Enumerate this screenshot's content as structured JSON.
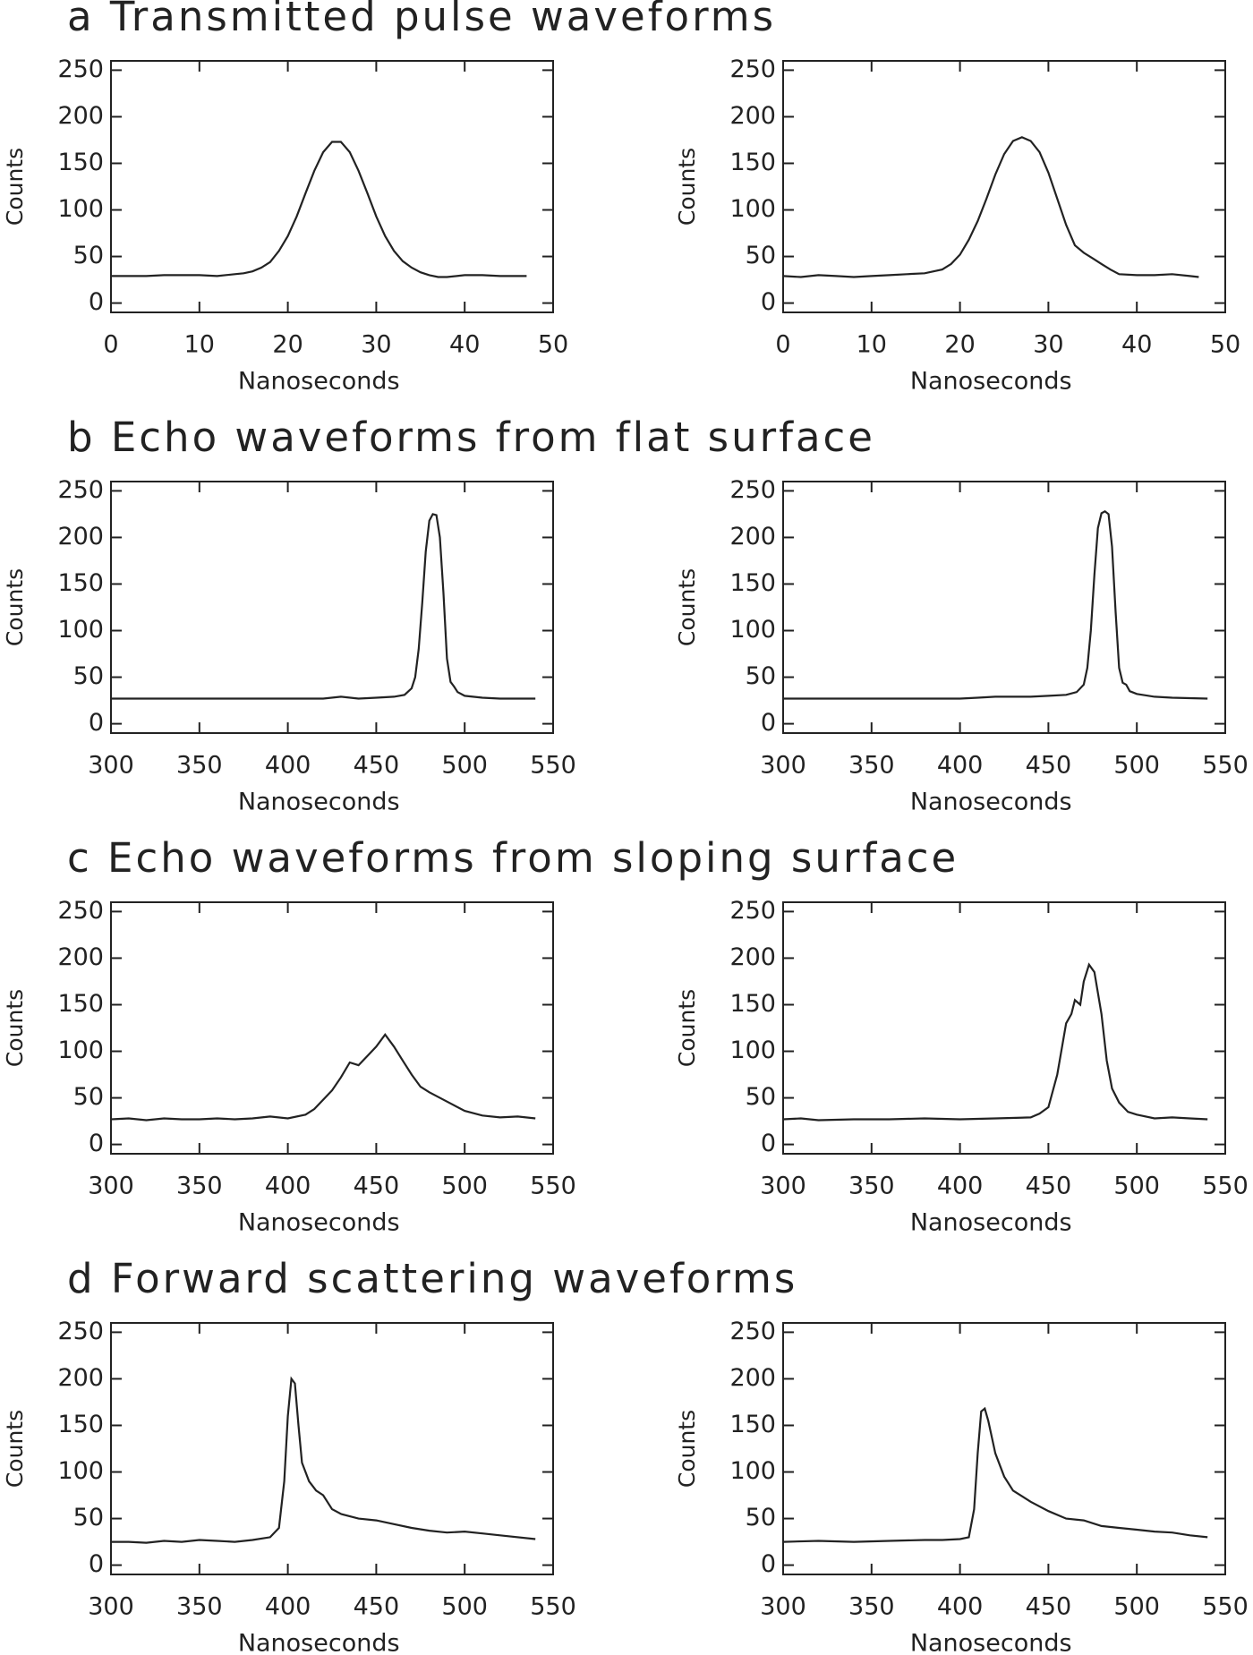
{
  "chart_data": [
    {
      "type": "line",
      "title": "a Transmitted pulse waveforms",
      "xlabel": "Nanoseconds",
      "ylabel": "Counts",
      "x": [
        0,
        2,
        4,
        6,
        8,
        10,
        12,
        14,
        15,
        16,
        17,
        18,
        19,
        20,
        21,
        22,
        23,
        24,
        25,
        26,
        27,
        28,
        29,
        30,
        31,
        32,
        33,
        34,
        35,
        36,
        37,
        38,
        40,
        42,
        44,
        46,
        47
      ],
      "values": [
        29,
        29,
        29,
        30,
        30,
        30,
        29,
        31,
        32,
        34,
        38,
        44,
        56,
        72,
        93,
        118,
        142,
        162,
        173,
        173,
        162,
        142,
        118,
        93,
        72,
        56,
        45,
        38,
        33,
        30,
        28,
        28,
        30,
        30,
        29,
        29,
        29
      ],
      "color": "#222",
      "xlim": [
        0,
        50
      ],
      "xticks": [
        0,
        10,
        20,
        30,
        40,
        50
      ],
      "ylim": [
        -10,
        260
      ],
      "yticks": [
        0,
        50,
        100,
        150,
        200,
        250
      ]
    },
    {
      "type": "line",
      "xlabel": "Nanoseconds",
      "ylabel": "Counts",
      "x": [
        0,
        2,
        4,
        6,
        8,
        10,
        12,
        14,
        16,
        17,
        18,
        19,
        20,
        21,
        22,
        23,
        24,
        25,
        26,
        27,
        28,
        29,
        30,
        31,
        32,
        33,
        34,
        35,
        36,
        37,
        38,
        40,
        42,
        44,
        46,
        47
      ],
      "values": [
        29,
        28,
        30,
        29,
        28,
        29,
        30,
        31,
        32,
        34,
        36,
        42,
        52,
        68,
        88,
        112,
        138,
        160,
        174,
        178,
        174,
        162,
        140,
        112,
        84,
        62,
        54,
        48,
        42,
        36,
        31,
        30,
        30,
        31,
        29,
        28
      ],
      "color": "#222",
      "xlim": [
        0,
        50
      ],
      "xticks": [
        0,
        10,
        20,
        30,
        40,
        50
      ],
      "ylim": [
        -10,
        260
      ],
      "yticks": [
        0,
        50,
        100,
        150,
        200,
        250
      ]
    },
    {
      "type": "line",
      "title": "b Echo waveforms from flat surface",
      "xlabel": "Nanoseconds",
      "ylabel": "Counts",
      "x": [
        300,
        320,
        340,
        360,
        380,
        400,
        420,
        430,
        440,
        450,
        460,
        466,
        470,
        472,
        474,
        476,
        478,
        480,
        482,
        484,
        486,
        488,
        490,
        492,
        494,
        496,
        500,
        510,
        520,
        540
      ],
      "values": [
        27,
        27,
        27,
        27,
        27,
        27,
        27,
        29,
        27,
        28,
        29,
        31,
        38,
        50,
        80,
        130,
        185,
        218,
        225,
        224,
        200,
        140,
        70,
        45,
        40,
        34,
        30,
        28,
        27,
        27
      ],
      "color": "#222",
      "xlim": [
        300,
        550
      ],
      "xticks": [
        300,
        350,
        400,
        450,
        500,
        550
      ],
      "ylim": [
        -10,
        260
      ],
      "yticks": [
        0,
        50,
        100,
        150,
        200,
        250
      ]
    },
    {
      "type": "line",
      "xlabel": "Nanoseconds",
      "ylabel": "Counts",
      "x": [
        300,
        320,
        340,
        360,
        380,
        400,
        410,
        420,
        440,
        450,
        460,
        466,
        470,
        472,
        474,
        476,
        478,
        480,
        482,
        484,
        486,
        488,
        490,
        492,
        494,
        496,
        500,
        510,
        520,
        540
      ],
      "values": [
        27,
        27,
        27,
        27,
        27,
        27,
        28,
        29,
        29,
        30,
        31,
        34,
        42,
        60,
        100,
        160,
        210,
        226,
        228,
        225,
        190,
        120,
        60,
        44,
        42,
        35,
        32,
        29,
        28,
        27
      ],
      "color": "#222",
      "xlim": [
        300,
        550
      ],
      "xticks": [
        300,
        350,
        400,
        450,
        500,
        550
      ],
      "ylim": [
        -10,
        260
      ],
      "yticks": [
        0,
        50,
        100,
        150,
        200,
        250
      ]
    },
    {
      "type": "line",
      "title": "c Echo waveforms from sloping surface",
      "xlabel": "Nanoseconds",
      "ylabel": "Counts",
      "x": [
        300,
        310,
        320,
        330,
        340,
        350,
        360,
        370,
        380,
        390,
        400,
        410,
        415,
        420,
        425,
        430,
        435,
        440,
        445,
        450,
        455,
        460,
        465,
        470,
        475,
        480,
        490,
        500,
        510,
        520,
        530,
        540
      ],
      "values": [
        27,
        28,
        26,
        28,
        27,
        27,
        28,
        27,
        28,
        30,
        28,
        32,
        38,
        48,
        58,
        72,
        88,
        85,
        95,
        105,
        118,
        105,
        90,
        75,
        62,
        56,
        46,
        36,
        31,
        29,
        30,
        28
      ],
      "color": "#222",
      "xlim": [
        300,
        550
      ],
      "xticks": [
        300,
        350,
        400,
        450,
        500,
        550
      ],
      "ylim": [
        -10,
        260
      ],
      "yticks": [
        0,
        50,
        100,
        150,
        200,
        250
      ]
    },
    {
      "type": "line",
      "xlabel": "Nanoseconds",
      "ylabel": "Counts",
      "x": [
        300,
        310,
        320,
        340,
        360,
        380,
        400,
        420,
        440,
        445,
        450,
        455,
        460,
        463,
        465,
        468,
        470,
        473,
        476,
        480,
        483,
        486,
        490,
        495,
        500,
        510,
        520,
        530,
        540
      ],
      "values": [
        27,
        28,
        26,
        27,
        27,
        28,
        27,
        28,
        29,
        33,
        40,
        75,
        130,
        140,
        155,
        150,
        175,
        193,
        185,
        140,
        90,
        60,
        45,
        35,
        32,
        28,
        29,
        28,
        27
      ],
      "color": "#222",
      "xlim": [
        300,
        550
      ],
      "xticks": [
        300,
        350,
        400,
        450,
        500,
        550
      ],
      "ylim": [
        -10,
        260
      ],
      "yticks": [
        0,
        50,
        100,
        150,
        200,
        250
      ]
    },
    {
      "type": "line",
      "title": "d Forward scattering waveforms",
      "xlabel": "Nanoseconds",
      "ylabel": "Counts",
      "x": [
        300,
        310,
        320,
        330,
        340,
        350,
        360,
        370,
        380,
        390,
        395,
        398,
        400,
        402,
        404,
        406,
        408,
        412,
        416,
        420,
        425,
        430,
        440,
        450,
        460,
        470,
        480,
        490,
        500,
        510,
        520,
        540
      ],
      "values": [
        25,
        25,
        24,
        26,
        25,
        27,
        26,
        25,
        27,
        30,
        40,
        90,
        160,
        200,
        195,
        150,
        110,
        90,
        80,
        75,
        60,
        55,
        50,
        48,
        44,
        40,
        37,
        35,
        36,
        34,
        32,
        28
      ],
      "color": "#222",
      "xlim": [
        300,
        550
      ],
      "xticks": [
        300,
        350,
        400,
        450,
        500,
        550
      ],
      "ylim": [
        -10,
        260
      ],
      "yticks": [
        0,
        50,
        100,
        150,
        200,
        250
      ]
    },
    {
      "type": "line",
      "xlabel": "Nanoseconds",
      "ylabel": "Counts",
      "x": [
        300,
        320,
        340,
        360,
        380,
        390,
        400,
        405,
        408,
        410,
        412,
        414,
        416,
        420,
        425,
        430,
        440,
        450,
        460,
        470,
        480,
        490,
        500,
        510,
        520,
        530,
        540
      ],
      "values": [
        25,
        26,
        25,
        26,
        27,
        27,
        28,
        30,
        60,
        120,
        165,
        168,
        155,
        120,
        95,
        80,
        68,
        58,
        50,
        48,
        42,
        40,
        38,
        36,
        35,
        32,
        30
      ],
      "color": "#222",
      "xlim": [
        300,
        550
      ],
      "xticks": [
        300,
        350,
        400,
        450,
        500,
        550
      ],
      "ylim": [
        -10,
        260
      ],
      "yticks": [
        0,
        50,
        100,
        150,
        200,
        250
      ]
    }
  ]
}
